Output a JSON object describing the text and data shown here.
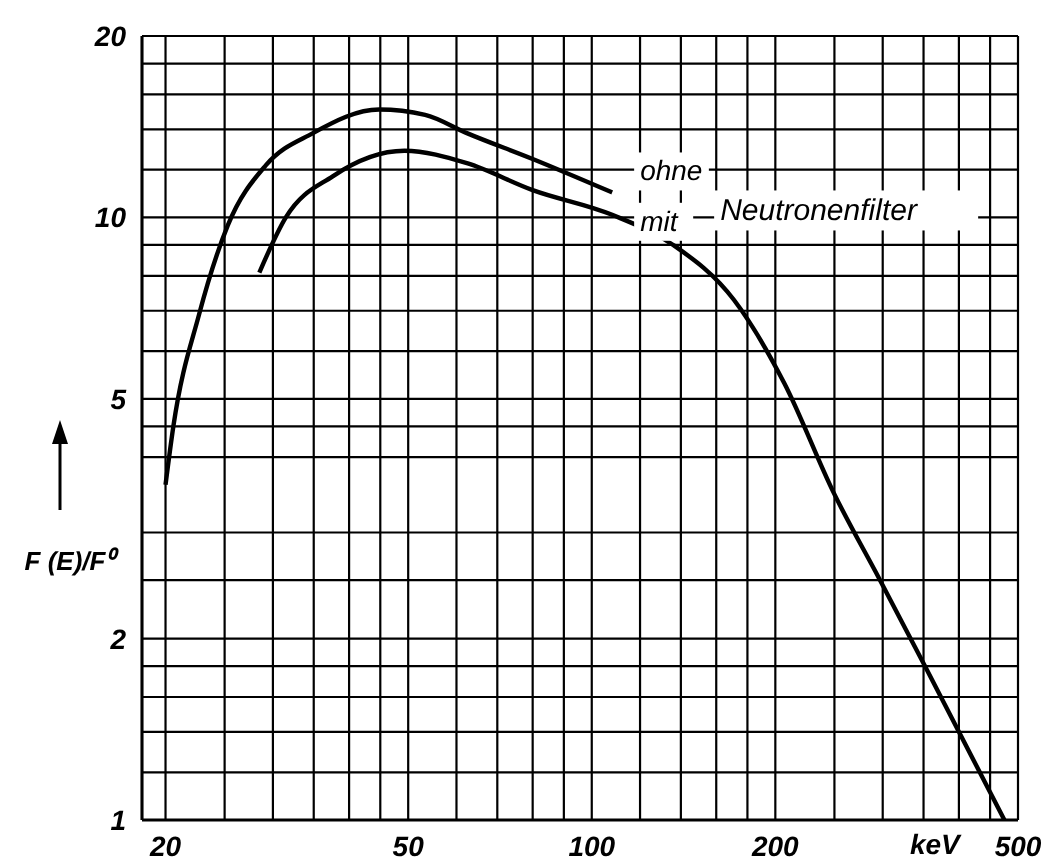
{
  "chart_data": {
    "type": "line",
    "ylabel": "F (E)/F⁰",
    "xlabel": "keV",
    "log": "xy",
    "grid": true,
    "xlim": [
      18.3,
      500
    ],
    "xticks": [
      20,
      {
        "value": 25,
        "label": null
      },
      {
        "value": 30,
        "label": null
      },
      {
        "value": 35,
        "label": null
      },
      {
        "value": 40,
        "label": null
      },
      {
        "value": 45,
        "label": null
      },
      50,
      {
        "value": 60,
        "label": null
      },
      {
        "value": 70,
        "label": null
      },
      {
        "value": 80,
        "label": null
      },
      {
        "value": 90,
        "label": null
      },
      100,
      {
        "value": 120,
        "label": null
      },
      {
        "value": 140,
        "label": null
      },
      {
        "value": 160,
        "label": null
      },
      {
        "value": 180,
        "label": null
      },
      200,
      {
        "value": 250,
        "label": null
      },
      {
        "value": 300,
        "label": null
      },
      {
        "value": 350,
        "label": null
      },
      {
        "value": 400,
        "label": null
      },
      {
        "value": 450,
        "label": null
      },
      500
    ],
    "ylim": [
      1,
      20
    ],
    "yticks": [
      1,
      {
        "value": 1.2,
        "label": null
      },
      {
        "value": 1.4,
        "label": null
      },
      {
        "value": 1.6,
        "label": null
      },
      {
        "value": 1.8,
        "label": null
      },
      2,
      {
        "value": 2.5,
        "label": null
      },
      {
        "value": 3,
        "label": null
      },
      {
        "value": 4,
        "label": null
      },
      {
        "value": 4.5,
        "label": null
      },
      5,
      {
        "value": 6,
        "label": null
      },
      {
        "value": 7,
        "label": null
      },
      {
        "value": 8,
        "label": null
      },
      {
        "value": 9,
        "label": null
      },
      10,
      {
        "value": 12,
        "label": null
      },
      {
        "value": 14,
        "label": null
      },
      {
        "value": 16,
        "label": null
      },
      {
        "value": 18,
        "label": null
      },
      20
    ],
    "annotations": [
      "Neutronenfilter"
    ],
    "series": [
      {
        "name": "ohne",
        "color": "#000000",
        "x": [
          20,
          20.6,
          22.7,
          25.3,
          29.2,
          34.9,
          44.8,
          53.3,
          62.4,
          80,
          108
        ],
        "values": [
          3.6,
          4.5,
          6.9,
          9.7,
          12.2,
          13.8,
          15.1,
          14.8,
          13.8,
          12.5,
          11
        ]
      },
      {
        "name": "mit",
        "color": "#000000",
        "x": [
          28.5,
          31.5,
          37.6,
          49.3,
          62.4,
          80,
          108,
          136,
          171,
          207,
          249,
          297,
          352,
          475
        ],
        "values": [
          8.1,
          10,
          11.7,
          12.9,
          12.3,
          11.1,
          10.1,
          9,
          7.3,
          5.3,
          3.5,
          2.5,
          1.8,
          1
        ]
      }
    ]
  }
}
